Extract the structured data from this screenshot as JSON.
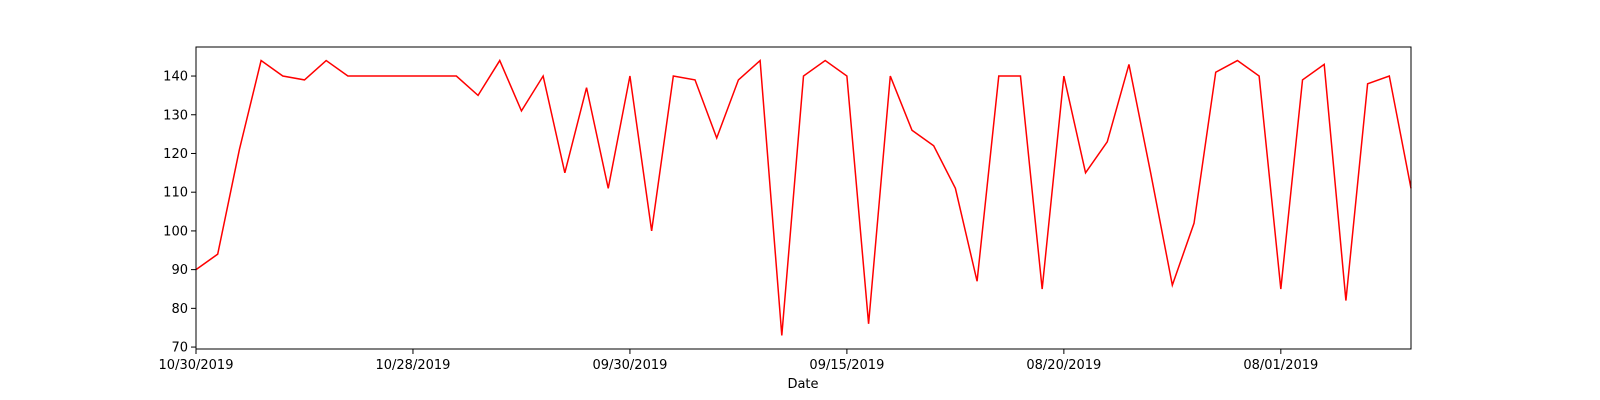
{
  "chart_data": {
    "type": "line",
    "title": "",
    "xlabel": "Date",
    "ylabel": "",
    "ylim": [
      69.5,
      147.5
    ],
    "yticks": [
      70,
      80,
      90,
      100,
      110,
      120,
      130,
      140
    ],
    "xticks": [
      {
        "index": 0,
        "label": "10/30/2019"
      },
      {
        "index": 10,
        "label": "10/28/2019"
      },
      {
        "index": 20,
        "label": "09/30/2019"
      },
      {
        "index": 30,
        "label": "09/15/2019"
      },
      {
        "index": 40,
        "label": "08/20/2019"
      },
      {
        "index": 50,
        "label": "08/01/2019"
      }
    ],
    "grid": false,
    "legend": "none",
    "series": [
      {
        "color": "#ff0000",
        "values": [
          90,
          94,
          121,
          144,
          140,
          139,
          144,
          140,
          140,
          140,
          140,
          140,
          140,
          135,
          144,
          131,
          140,
          115,
          137,
          111,
          140,
          100,
          140,
          139,
          124,
          139,
          144,
          73,
          140,
          144,
          140,
          76,
          140,
          126,
          122,
          111,
          87,
          140,
          140,
          85,
          140,
          115,
          123,
          143,
          115,
          86,
          102,
          141,
          144,
          140,
          85,
          139,
          143,
          82,
          138,
          140,
          111
        ]
      }
    ]
  }
}
